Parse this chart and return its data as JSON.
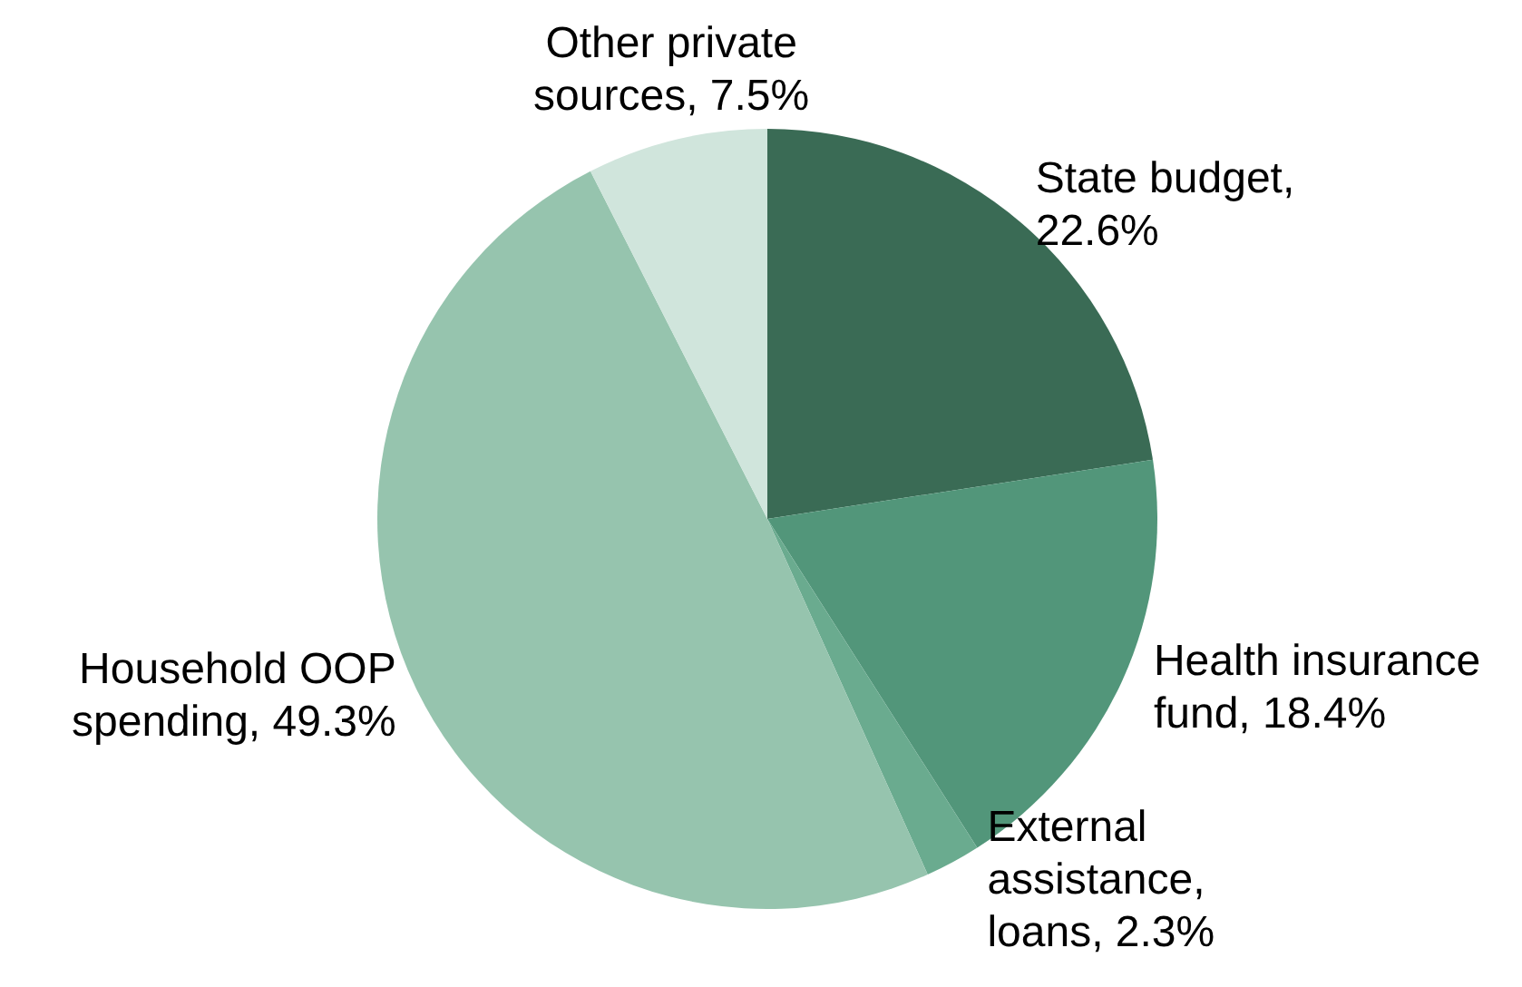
{
  "chart_data": {
    "type": "pie",
    "categories": [
      "State budget, 22.6%",
      "Health insurance fund, 18.4%",
      "External assistance, loans, 2.3%",
      "Household OOP spending, 49.3%",
      "Other private sources, 7.5%"
    ],
    "values": [
      22.6,
      18.4,
      2.3,
      49.3,
      7.5
    ],
    "colors": [
      "#3a6b55",
      "#52967a",
      "#6aab8f",
      "#96c4ae",
      "#d0e5dc"
    ],
    "legend": false
  }
}
